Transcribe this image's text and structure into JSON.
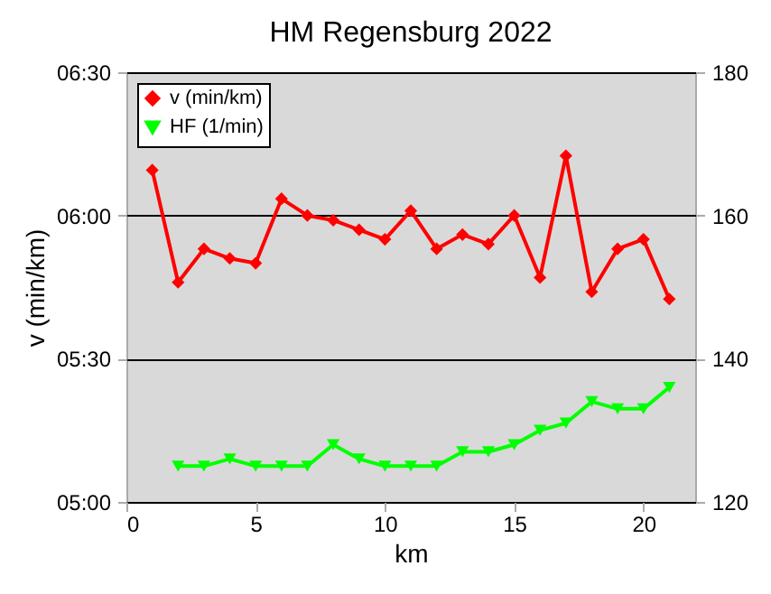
{
  "chart_data": {
    "type": "line",
    "title": "HM Regensburg 2022",
    "xlabel": "km",
    "ylabel": "v (min/km)",
    "x": [
      1,
      2,
      3,
      4,
      5,
      6,
      7,
      8,
      9,
      10,
      11,
      12,
      13,
      14,
      15,
      16,
      17,
      18,
      19,
      20,
      21
    ],
    "series": [
      {
        "name": "v (min/km)",
        "color": "#ff0000",
        "marker": "diamond",
        "values": [
          369.5,
          346,
          353,
          351,
          350,
          363.5,
          360,
          359,
          357,
          355,
          361,
          353,
          356,
          354,
          360,
          347,
          372.5,
          344,
          353,
          355,
          342.5
        ]
      },
      {
        "name": "HF (1/min)",
        "color": "#00ff00",
        "marker": "triangle",
        "axis": "y2",
        "values": [
          null,
          125,
          125,
          126,
          125,
          125,
          125,
          128,
          126,
          125,
          125,
          125,
          127,
          127,
          128,
          130,
          131,
          134,
          133,
          133,
          136
        ]
      }
    ],
    "xlim": [
      0,
      22
    ],
    "xticks": [
      0,
      5,
      10,
      15,
      20
    ],
    "ylim": [
      300,
      390
    ],
    "yticks": [
      {
        "value": 300,
        "label": "05:00"
      },
      {
        "value": 330,
        "label": "05:30"
      },
      {
        "value": 360,
        "label": "06:00"
      },
      {
        "value": 390,
        "label": "06:30"
      }
    ],
    "y2lim": [
      120,
      180
    ],
    "y2ticks": [
      120,
      140,
      160,
      180
    ],
    "grid": "y",
    "legend": "top left"
  }
}
